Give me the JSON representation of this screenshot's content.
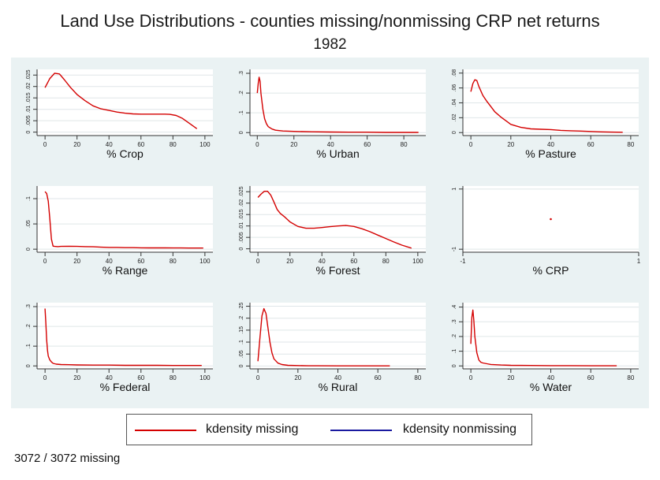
{
  "title": "Land Use Distributions - counties missing/nonmissing CRP net returns",
  "subtitle": "1982",
  "note": "3072 / 3072 missing",
  "colors": {
    "missing": "#d40000",
    "nonmissing": "#1a1aa0",
    "panel_bg": "#eaf2f3"
  },
  "legend": {
    "missing_label": "kdensity missing",
    "nonmissing_label": "kdensity nonmissing"
  },
  "chart_data": [
    {
      "type": "line",
      "xlabel": "% Crop",
      "xticks": [
        0,
        20,
        40,
        60,
        80,
        100
      ],
      "yticks": [
        0,
        0.005,
        0.01,
        0.015,
        0.02,
        0.025
      ],
      "ytick_labels": [
        "0",
        ".005",
        ".01",
        ".015",
        ".02",
        ".025"
      ],
      "xlim": [
        -5,
        105
      ],
      "ylim": [
        -0.0015,
        0.0275
      ],
      "series": [
        {
          "name": "kdensity missing",
          "x": [
            0,
            3,
            6,
            9,
            12,
            16,
            20,
            25,
            30,
            35,
            40,
            45,
            50,
            55,
            60,
            65,
            70,
            75,
            78,
            82,
            86,
            90,
            95
          ],
          "y": [
            0.0195,
            0.0235,
            0.0258,
            0.0255,
            0.023,
            0.0195,
            0.0165,
            0.0138,
            0.0115,
            0.0102,
            0.0095,
            0.0088,
            0.0083,
            0.008,
            0.0079,
            0.0079,
            0.0079,
            0.0079,
            0.0078,
            0.0073,
            0.006,
            0.004,
            0.0015
          ]
        }
      ]
    },
    {
      "type": "line",
      "xlabel": "% Urban",
      "xticks": [
        0,
        20,
        40,
        60,
        80
      ],
      "yticks": [
        0,
        0.1,
        0.2,
        0.3
      ],
      "ytick_labels": [
        "0",
        ".1",
        ".2",
        ".3"
      ],
      "xlim": [
        -4,
        92
      ],
      "ylim": [
        -0.015,
        0.32
      ],
      "series": [
        {
          "name": "kdensity missing",
          "x": [
            0,
            0.5,
            1,
            1.5,
            2,
            3,
            4,
            5,
            6,
            8,
            10,
            14,
            20,
            30,
            40,
            50,
            60,
            70,
            80,
            88
          ],
          "y": [
            0.2,
            0.25,
            0.28,
            0.26,
            0.2,
            0.12,
            0.07,
            0.045,
            0.03,
            0.018,
            0.012,
            0.008,
            0.006,
            0.004,
            0.003,
            0.002,
            0.002,
            0.001,
            0.001,
            0.001
          ]
        }
      ]
    },
    {
      "type": "line",
      "xlabel": "% Pasture",
      "xticks": [
        0,
        20,
        40,
        60,
        80
      ],
      "yticks": [
        0,
        0.02,
        0.04,
        0.06,
        0.08
      ],
      "ytick_labels": [
        "0",
        ".02",
        ".04",
        ".06",
        ".08"
      ],
      "xlim": [
        -4,
        84
      ],
      "ylim": [
        -0.004,
        0.085
      ],
      "series": [
        {
          "name": "kdensity missing",
          "x": [
            0,
            1,
            2,
            3,
            4,
            6,
            8,
            10,
            12,
            15,
            18,
            20,
            25,
            30,
            35,
            40,
            45,
            50,
            55,
            60,
            65,
            70,
            76
          ],
          "y": [
            0.055,
            0.066,
            0.071,
            0.07,
            0.062,
            0.05,
            0.042,
            0.035,
            0.028,
            0.021,
            0.015,
            0.011,
            0.007,
            0.005,
            0.0045,
            0.004,
            0.003,
            0.0025,
            0.002,
            0.0015,
            0.001,
            0.0007,
            0.0005
          ]
        }
      ]
    },
    {
      "type": "line",
      "xlabel": "% Range",
      "xticks": [
        0,
        20,
        40,
        60,
        80,
        100
      ],
      "yticks": [
        0,
        0.05,
        0.1
      ],
      "ytick_labels": [
        "0",
        ".05",
        ".1"
      ],
      "xlim": [
        -5,
        105
      ],
      "ylim": [
        -0.006,
        0.125
      ],
      "series": [
        {
          "name": "kdensity missing",
          "x": [
            0,
            1,
            2,
            3,
            4,
            5,
            6,
            8,
            10,
            15,
            20,
            25,
            30,
            35,
            40,
            45,
            50,
            55,
            60,
            65,
            70,
            75,
            80,
            85,
            90,
            95,
            99
          ],
          "y": [
            0.114,
            0.11,
            0.095,
            0.06,
            0.02,
            0.006,
            0.0055,
            0.005,
            0.0055,
            0.0058,
            0.0055,
            0.005,
            0.0048,
            0.004,
            0.0035,
            0.0035,
            0.003,
            0.003,
            0.0028,
            0.0026,
            0.0025,
            0.0025,
            0.0024,
            0.0024,
            0.0023,
            0.0023,
            0.0022
          ]
        }
      ]
    },
    {
      "type": "line",
      "xlabel": "% Forest",
      "xticks": [
        0,
        20,
        40,
        60,
        80,
        100
      ],
      "yticks": [
        0,
        0.005,
        0.01,
        0.015,
        0.02,
        0.025
      ],
      "ytick_labels": [
        "0",
        ".005",
        ".01",
        ".015",
        ".02",
        ".025"
      ],
      "xlim": [
        -5,
        105
      ],
      "ylim": [
        -0.0015,
        0.0275
      ],
      "series": [
        {
          "name": "kdensity missing",
          "x": [
            0,
            2,
            4,
            6,
            8,
            10,
            12,
            14,
            17,
            20,
            25,
            30,
            35,
            40,
            45,
            50,
            55,
            60,
            65,
            70,
            75,
            80,
            85,
            90,
            96
          ],
          "y": [
            0.0225,
            0.024,
            0.0252,
            0.0252,
            0.0235,
            0.0205,
            0.0172,
            0.0155,
            0.0138,
            0.0118,
            0.0098,
            0.009,
            0.009,
            0.0093,
            0.0097,
            0.01,
            0.0102,
            0.0098,
            0.0088,
            0.0075,
            0.006,
            0.0045,
            0.003,
            0.0016,
            0.0003
          ]
        }
      ]
    },
    {
      "type": "scatter",
      "xlabel": "% CRP",
      "xticks": [
        -1,
        1
      ],
      "yticks": [
        -1,
        1
      ],
      "ytick_labels": [
        "-1",
        "1"
      ],
      "xlim": [
        -1,
        1
      ],
      "ylim": [
        -1.1,
        1.1
      ],
      "series": [
        {
          "name": "kdensity missing",
          "x": [
            0
          ],
          "y": [
            0
          ]
        }
      ]
    },
    {
      "type": "line",
      "xlabel": "% Federal",
      "xticks": [
        0,
        20,
        40,
        60,
        80,
        100
      ],
      "yticks": [
        0,
        0.1,
        0.2,
        0.3
      ],
      "ytick_labels": [
        "0",
        ".1",
        ".2",
        ".3"
      ],
      "xlim": [
        -5,
        105
      ],
      "ylim": [
        -0.015,
        0.32
      ],
      "series": [
        {
          "name": "kdensity missing",
          "x": [
            0,
            0.5,
            1,
            1.5,
            2,
            3,
            4,
            5,
            7,
            10,
            15,
            20,
            30,
            40,
            50,
            60,
            70,
            80,
            90,
            98
          ],
          "y": [
            0.29,
            0.22,
            0.13,
            0.08,
            0.05,
            0.03,
            0.02,
            0.013,
            0.009,
            0.007,
            0.006,
            0.005,
            0.004,
            0.004,
            0.003,
            0.003,
            0.003,
            0.002,
            0.002,
            0.002
          ]
        }
      ]
    },
    {
      "type": "line",
      "xlabel": "% Rural",
      "xticks": [
        0,
        20,
        40,
        60,
        80
      ],
      "yticks": [
        0,
        0.05,
        0.1,
        0.15,
        0.2,
        0.25
      ],
      "ytick_labels": [
        "0",
        ".05",
        ".1",
        ".15",
        ".2",
        ".25"
      ],
      "xlim": [
        -4,
        84
      ],
      "ylim": [
        -0.012,
        0.265
      ],
      "series": [
        {
          "name": "kdensity missing",
          "x": [
            0,
            1,
            2,
            3,
            4,
            5,
            6,
            7,
            8,
            10,
            12,
            15,
            20,
            25,
            30,
            40,
            50,
            60,
            66
          ],
          "y": [
            0.02,
            0.12,
            0.21,
            0.24,
            0.22,
            0.16,
            0.1,
            0.055,
            0.03,
            0.012,
            0.006,
            0.003,
            0.002,
            0.001,
            0.001,
            0.0005,
            0.0005,
            0.0005,
            0.0005
          ]
        }
      ]
    },
    {
      "type": "line",
      "xlabel": "% Water",
      "xticks": [
        0,
        20,
        40,
        60,
        80
      ],
      "yticks": [
        0,
        0.1,
        0.2,
        0.3,
        0.4
      ],
      "ytick_labels": [
        "0",
        ".1",
        ".2",
        ".3",
        ".4"
      ],
      "xlim": [
        -4,
        84
      ],
      "ylim": [
        -0.02,
        0.43
      ],
      "series": [
        {
          "name": "kdensity missing",
          "x": [
            0,
            0.5,
            1,
            1.5,
            2,
            3,
            4,
            5,
            6,
            8,
            10,
            15,
            20,
            30,
            40,
            50,
            60,
            73
          ],
          "y": [
            0.15,
            0.33,
            0.38,
            0.31,
            0.2,
            0.09,
            0.04,
            0.025,
            0.02,
            0.015,
            0.01,
            0.006,
            0.004,
            0.003,
            0.002,
            0.002,
            0.001,
            0.001
          ]
        }
      ]
    }
  ]
}
